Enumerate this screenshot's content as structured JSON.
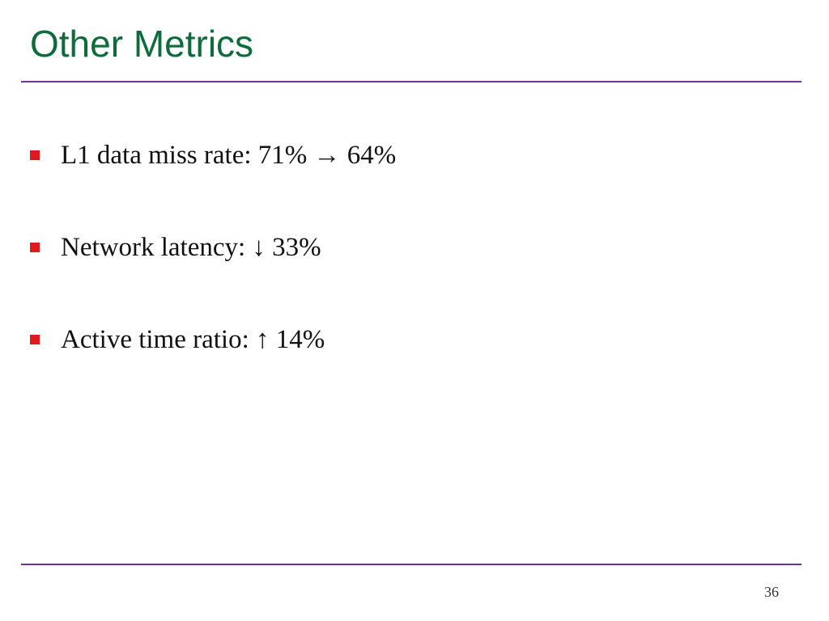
{
  "slide": {
    "title": "Other Metrics",
    "bullets": [
      {
        "text": "L1 data miss rate: 71% → 64%"
      },
      {
        "text": "Network latency: ↓ 33%"
      },
      {
        "text": "Active time ratio: ↑ 14%"
      }
    ],
    "page_number": "36"
  },
  "colors": {
    "title": "#0e6b3a",
    "rule": "#7030a0",
    "bullet_marker": "#e0191e"
  }
}
